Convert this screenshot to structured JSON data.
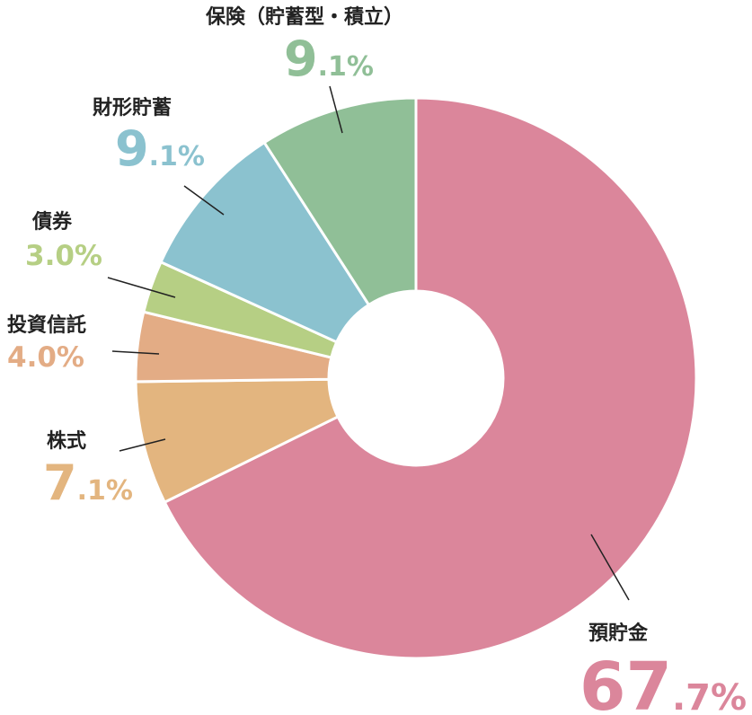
{
  "chart_data": {
    "type": "pie",
    "donut": true,
    "title": "",
    "legend": "none",
    "slices": [
      {
        "label": "預貯金",
        "value": 67.7,
        "int_part": "67",
        "dec_part": ".7%",
        "color": "#db869b"
      },
      {
        "label": "株式",
        "value": 7.1,
        "int_part": "7",
        "dec_part": ".1%",
        "color": "#e3b57f"
      },
      {
        "label": "投資信託",
        "value": 4.0,
        "int_part": "4.0%",
        "dec_part": "",
        "color": "#e3ac85"
      },
      {
        "label": "債券",
        "value": 3.0,
        "int_part": "3.0%",
        "dec_part": "",
        "color": "#b6cf84"
      },
      {
        "label": "財形貯蓄",
        "value": 9.1,
        "int_part": "9",
        "dec_part": ".1%",
        "color": "#8bc2cf"
      },
      {
        "label": "保険（貯蓄型・積立）",
        "value": 9.1,
        "int_part": "9",
        "dec_part": ".1%",
        "color": "#90bf97"
      }
    ]
  }
}
